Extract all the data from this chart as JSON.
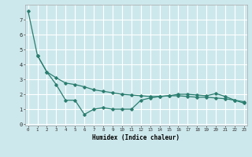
{
  "title": "",
  "xlabel": "Humidex (Indice chaleur)",
  "ylabel": "",
  "background_color": "#cde8ec",
  "line_color": "#2a7d6f",
  "grid_color": "#ffffff",
  "x_ticks": [
    0,
    1,
    2,
    3,
    4,
    5,
    6,
    7,
    8,
    9,
    10,
    11,
    12,
    13,
    14,
    15,
    16,
    17,
    18,
    19,
    20,
    21,
    22,
    23
  ],
  "y_ticks": [
    0,
    1,
    2,
    3,
    4,
    5,
    6,
    7
  ],
  "xlim": [
    -0.3,
    23.3
  ],
  "ylim": [
    -0.1,
    8.0
  ],
  "line1_x": [
    0,
    1,
    2,
    3,
    4,
    5,
    6,
    7,
    8,
    9,
    10,
    11,
    12,
    13,
    14,
    15,
    16,
    17,
    18,
    19,
    20,
    21,
    22,
    23
  ],
  "line1_y": [
    7.6,
    4.6,
    3.5,
    3.1,
    2.75,
    2.65,
    2.5,
    2.3,
    2.2,
    2.1,
    2.0,
    1.95,
    1.9,
    1.85,
    1.85,
    1.9,
    1.9,
    1.85,
    1.8,
    1.8,
    1.75,
    1.7,
    1.6,
    1.5
  ],
  "line2_x": [
    1,
    2,
    3,
    4,
    5,
    6,
    7,
    8,
    9,
    10,
    11,
    12,
    13,
    14,
    15,
    16,
    17,
    18,
    19,
    20,
    21,
    22,
    23
  ],
  "line2_y": [
    4.6,
    3.5,
    2.65,
    1.6,
    1.6,
    0.65,
    1.0,
    1.1,
    1.0,
    1.0,
    1.0,
    1.6,
    1.75,
    1.85,
    1.9,
    2.0,
    2.0,
    1.95,
    1.9,
    2.05,
    1.85,
    1.6,
    1.4
  ],
  "xlabel_fontsize": 5.5,
  "xtick_fontsize": 4.2,
  "ytick_fontsize": 5.0
}
